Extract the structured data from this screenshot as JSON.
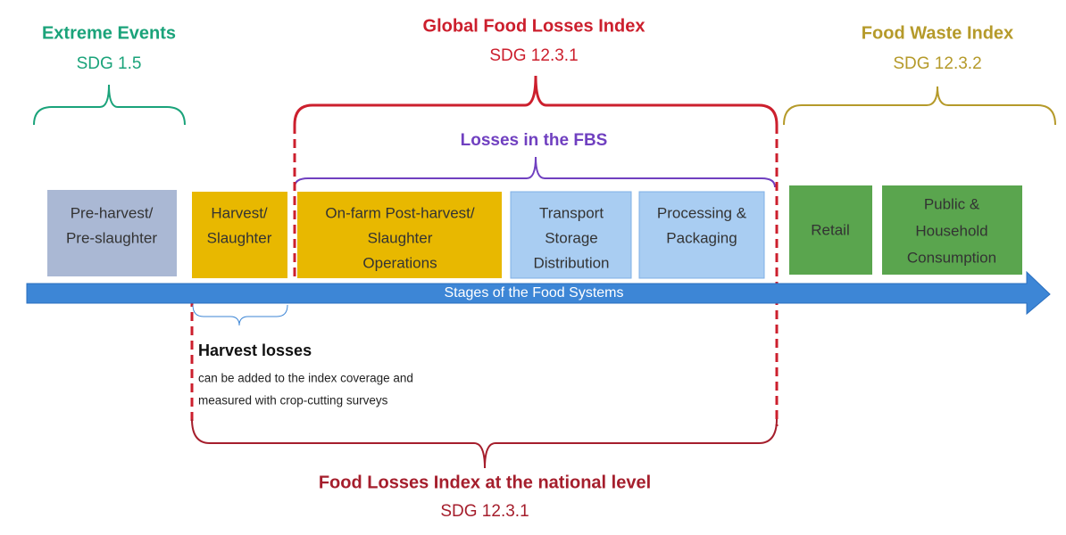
{
  "groups": [
    {
      "title": "Extreme Events",
      "code": "SDG 1.5"
    },
    {
      "title": "Global Food Losses Index",
      "code": "SDG 12.3.1"
    },
    {
      "title": "Food Waste Index",
      "code": "SDG 12.3.2"
    },
    {
      "title": "Losses in the FBS"
    },
    {
      "title": "Food Losses Index at the national level",
      "code": "SDG 12.3.1"
    }
  ],
  "stages": [
    {
      "lines": [
        "Pre-harvest/",
        "Pre-slaughter"
      ]
    },
    {
      "lines": [
        "Harvest/",
        "Slaughter"
      ]
    },
    {
      "lines": [
        "On-farm Post-harvest/",
        "Slaughter",
        "Operations"
      ]
    },
    {
      "lines": [
        "Transport",
        "Storage",
        "Distribution"
      ]
    },
    {
      "lines": [
        "Processing &",
        "Packaging"
      ]
    },
    {
      "lines": [
        "Retail"
      ]
    },
    {
      "lines": [
        "Public &",
        "Household",
        "Consumption"
      ]
    }
  ],
  "axis_label": "Stages of the Food Systems",
  "note": {
    "title": "Harvest losses",
    "lines": [
      "can be added to the index coverage and",
      "measured with crop-cutting surveys"
    ]
  }
}
